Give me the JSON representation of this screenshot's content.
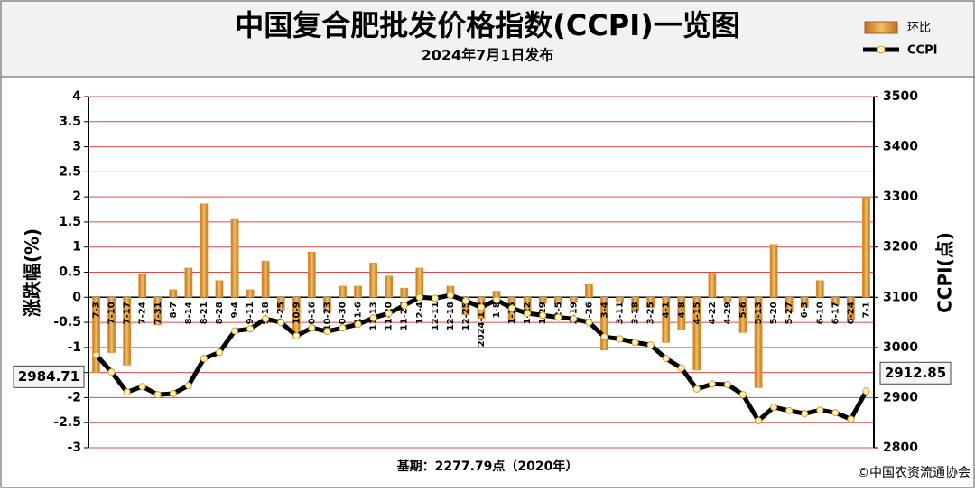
{
  "chart_data": {
    "type": "bar_line",
    "title": "中国复合肥批发价格指数(CCPI)一览图",
    "subtitle": "2024年7月1日发布",
    "ylabel": "涨跌幅(%)",
    "y2label": "CCPI(点)",
    "footer": "基期：2277.79点（2020年）",
    "source": "©中国农资流通协会",
    "grid": true,
    "legend": "top-right",
    "categories": [
      "7-3",
      "7-10",
      "7-17",
      "7-24",
      "7-31",
      "8-7",
      "8-14",
      "8-21",
      "8-28",
      "9-4",
      "9-11",
      "9-18",
      "9-25",
      "10-9",
      "10-16",
      "10-23",
      "10-30",
      "11-6",
      "11-13",
      "11-20",
      "11-27",
      "12-4",
      "12-11",
      "12-18",
      "12-25",
      "2024-1-2",
      "1-8",
      "1-15",
      "1-22",
      "1-29",
      "2-5",
      "2-19",
      "2-26",
      "3-4",
      "3-11",
      "3-18",
      "3-25",
      "4-1",
      "4-8",
      "4-15",
      "4-22",
      "4-29",
      "5-6",
      "5-13",
      "5-20",
      "5-27",
      "6-3",
      "6-10",
      "6-17",
      "6-24",
      "7-1"
    ],
    "series": [
      {
        "name": "环比",
        "color": "#e09030",
        "values": [
          -1.5,
          -1.1,
          -1.35,
          0.45,
          -0.55,
          0.15,
          0.58,
          1.86,
          0.33,
          1.55,
          0.15,
          0.72,
          -0.25,
          -0.8,
          0.9,
          -0.3,
          0.22,
          0.22,
          0.68,
          0.42,
          0.18,
          0.58,
          -0.05,
          0.22,
          -0.35,
          -0.42,
          0.12,
          -0.5,
          -0.35,
          -0.12,
          -0.13,
          -0.1,
          0.25,
          -1.05,
          -0.1,
          -0.25,
          -0.2,
          -0.9,
          -0.65,
          -1.45,
          0.48,
          -0.1,
          -0.7,
          -1.8,
          1.05,
          -0.3,
          -0.2,
          0.33,
          -0.15,
          -0.45,
          1.98
        ]
      },
      {
        "name": "CCPI",
        "color": "#000000",
        "axis": "y2",
        "values": [
          2984.71,
          2951,
          2911,
          2922,
          2906,
          2908,
          2924,
          2978,
          2990,
          3033,
          3037,
          3057,
          3050,
          3023,
          3039,
          3032,
          3039,
          3046,
          3059,
          3068,
          3084,
          3100,
          3098,
          3104,
          3093,
          3080,
          3095,
          3078,
          3068,
          3064,
          3060,
          3057,
          3050,
          3021,
          3017,
          3010,
          3005,
          2978,
          2959,
          2917,
          2927,
          2926,
          2906,
          2854,
          2881,
          2874,
          2868,
          2875,
          2870,
          2857,
          2912.85
        ]
      }
    ],
    "ylim": [
      -3,
      4
    ],
    "yticks": [
      -3,
      -2.5,
      -2,
      -1.5,
      -1,
      -0.5,
      0,
      0.5,
      1,
      1.5,
      2,
      2.5,
      3,
      3.5,
      4
    ],
    "y2lim": [
      2800,
      3500
    ],
    "y2ticks": [
      2800,
      2900,
      3000,
      3100,
      3200,
      3300,
      3400,
      3500
    ]
  }
}
